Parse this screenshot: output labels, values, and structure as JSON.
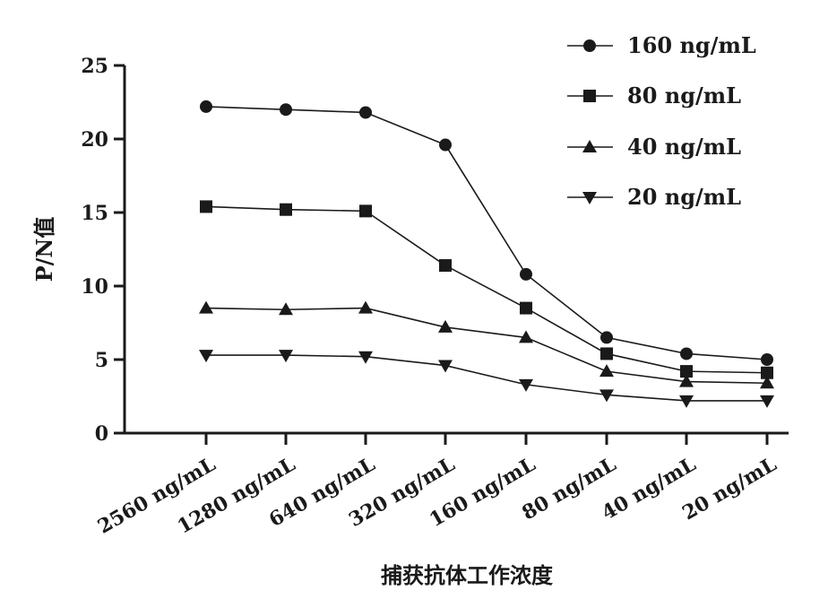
{
  "chart_data": {
    "type": "line",
    "title": "",
    "xlabel": "捕获抗体工作浓度",
    "ylabel": "P/N值",
    "ylim": [
      0,
      25
    ],
    "yticks": [
      0,
      5,
      10,
      15,
      20,
      25
    ],
    "categories": [
      "2560 ng/mL",
      "1280 ng/mL",
      "640 ng/mL",
      "320 ng/mL",
      "160 ng/mL",
      "80 ng/mL",
      "40 ng/mL",
      "20 ng/mL"
    ],
    "legend_position": "top-right",
    "grid": false,
    "series": [
      {
        "name": "160 ng/mL",
        "marker": "circle",
        "values": [
          22.2,
          22.0,
          21.8,
          19.6,
          10.8,
          6.5,
          5.4,
          5.0
        ]
      },
      {
        "name": "80 ng/mL",
        "marker": "square",
        "values": [
          15.4,
          15.2,
          15.1,
          11.4,
          8.5,
          5.4,
          4.2,
          4.1
        ]
      },
      {
        "name": "40 ng/mL",
        "marker": "triangle-up",
        "values": [
          8.5,
          8.4,
          8.5,
          7.2,
          6.5,
          4.2,
          3.5,
          3.4
        ]
      },
      {
        "name": "20 ng/mL",
        "marker": "triangle-down",
        "values": [
          5.3,
          5.3,
          5.2,
          4.6,
          3.3,
          2.6,
          2.2,
          2.2
        ]
      }
    ],
    "colors": {
      "line": "#1a1a1a",
      "marker": "#1a1a1a"
    }
  }
}
